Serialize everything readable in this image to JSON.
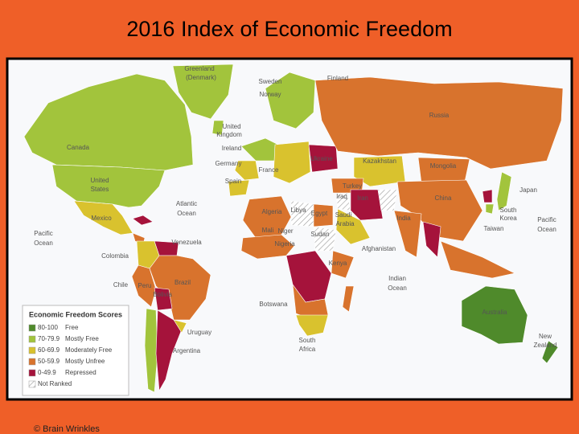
{
  "header": {
    "title": "2016 Index of Economic Freedom"
  },
  "map": {
    "labels": [
      "Greenland",
      "(Denmark)",
      "Sweden",
      "Finland",
      "Norway",
      "Russia",
      "United",
      "Kingdom",
      "Ireland",
      "Canada",
      "Germany",
      "France",
      "Ukraine",
      "Kazakhstan",
      "Mongolia",
      "Japan",
      "United",
      "States",
      "Spain",
      "Turkey",
      "Iraq",
      "Iran",
      "China",
      "Atlantic",
      "Ocean",
      "Libya",
      "Egypt",
      "Algeria",
      "Saudi",
      "Arabia",
      "India",
      "South",
      "Korea",
      "Pacific",
      "Ocean",
      "Mexico",
      "Taiwan",
      "Mali",
      "Niger",
      "Sudan",
      "Pacific",
      "Ocean",
      "Venezuela",
      "Nigeria",
      "Afghanistan",
      "Colombia",
      "Kenya",
      "Indian",
      "Ocean",
      "Chile",
      "Peru",
      "Brazil",
      "Bolivia",
      "Australia",
      "Botswana",
      "Uruguay",
      "South",
      "Africa",
      "New",
      "Zealand",
      "Argentina"
    ]
  },
  "legend": {
    "title": "Economic Freedom Scores",
    "items": [
      {
        "range": "80-100",
        "label": "Free",
        "color": "#4f8a2b"
      },
      {
        "range": "70-79.9",
        "label": "Mostly Free",
        "color": "#a2c43c"
      },
      {
        "range": "60-69.9",
        "label": "Moderately Free",
        "color": "#d9c22e"
      },
      {
        "range": "50-59.9",
        "label": "Mostly Unfree",
        "color": "#d8732d"
      },
      {
        "range": "0-49.9",
        "label": "Repressed",
        "color": "#a5133b"
      },
      {
        "range": "Not Ranked",
        "pattern": "hatch"
      }
    ]
  },
  "footer": {
    "text": "© Brain Wrinkles"
  }
}
